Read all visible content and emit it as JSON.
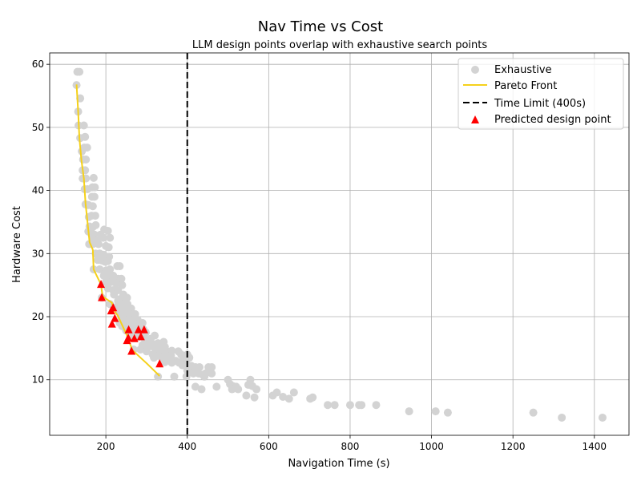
{
  "chart_data": {
    "type": "scatter",
    "title": "Nav Time vs Cost",
    "subtitle": "LLM design points overlap with exhaustive search points",
    "xlabel": "Navigation Time (s)",
    "ylabel": "Hardware Cost",
    "xlim": [
      62,
      1485
    ],
    "ylim": [
      1.2,
      61.8
    ],
    "x_ticks": [
      "200",
      "400",
      "600",
      "800",
      "1000",
      "1200",
      "1400"
    ],
    "y_ticks": [
      "10",
      "20",
      "30",
      "40",
      "50",
      "60"
    ],
    "grid": true,
    "legend_position": "top-right",
    "colors": {
      "exhaustive": "#d3d3d3",
      "pareto": "#f5d11b",
      "time_limit": "#000000",
      "predicted": "#ff0000"
    },
    "legend": [
      "Exhaustive",
      "Pareto Front",
      "Time Limit (400s)",
      "Predicted design point"
    ],
    "time_limit": 400,
    "series": [
      {
        "name": "Exhaustive",
        "kind": "scatter",
        "points": [
          [
            130,
            58.8
          ],
          [
            135,
            58.8
          ],
          [
            128,
            56.7
          ],
          [
            137,
            54.6
          ],
          [
            132,
            52.5
          ],
          [
            133,
            50.3
          ],
          [
            146,
            50.3
          ],
          [
            137,
            48.3
          ],
          [
            149,
            48.5
          ],
          [
            141,
            46.2
          ],
          [
            147,
            46.8
          ],
          [
            154,
            46.8
          ],
          [
            144,
            44.9
          ],
          [
            151,
            44.9
          ],
          [
            143,
            43.2
          ],
          [
            149,
            43.2
          ],
          [
            143,
            41.9
          ],
          [
            151,
            41.9
          ],
          [
            170,
            42
          ],
          [
            148,
            40.2
          ],
          [
            155,
            40.2
          ],
          [
            167,
            40.5
          ],
          [
            173,
            40.5
          ],
          [
            166,
            39
          ],
          [
            172,
            39
          ],
          [
            150,
            37.8
          ],
          [
            157,
            37.7
          ],
          [
            168,
            37.5
          ],
          [
            158,
            35.8
          ],
          [
            165,
            36
          ],
          [
            174,
            36
          ],
          [
            160,
            34.3
          ],
          [
            168,
            34.2
          ],
          [
            175,
            34.5
          ],
          [
            157,
            33.5
          ],
          [
            165,
            33
          ],
          [
            172,
            33
          ],
          [
            187,
            33
          ],
          [
            196,
            33.8
          ],
          [
            205,
            33.6
          ],
          [
            169,
            32.2
          ],
          [
            178,
            32
          ],
          [
            194,
            32.5
          ],
          [
            210,
            32.5
          ],
          [
            159,
            31.5
          ],
          [
            168,
            31.5
          ],
          [
            182,
            31.5
          ],
          [
            200,
            31.2
          ],
          [
            207,
            31
          ],
          [
            175,
            30
          ],
          [
            185,
            30
          ],
          [
            195,
            29.8
          ],
          [
            208,
            29.5
          ],
          [
            180,
            29
          ],
          [
            190,
            28.9
          ],
          [
            198,
            28.7
          ],
          [
            205,
            28.8
          ],
          [
            170,
            27.5
          ],
          [
            185,
            27.5
          ],
          [
            200,
            27.3
          ],
          [
            210,
            27.5
          ],
          [
            228,
            28
          ],
          [
            234,
            28
          ],
          [
            195,
            26.5
          ],
          [
            207,
            26.5
          ],
          [
            218,
            26.5
          ],
          [
            230,
            26
          ],
          [
            238,
            26
          ],
          [
            200,
            25.5
          ],
          [
            213,
            25.5
          ],
          [
            225,
            25.3
          ],
          [
            240,
            25
          ],
          [
            205,
            24.5
          ],
          [
            218,
            24.2
          ],
          [
            230,
            24.2
          ],
          [
            243,
            23.5
          ],
          [
            252,
            23
          ],
          [
            190,
            23
          ],
          [
            220,
            23.5
          ],
          [
            235,
            22.8
          ],
          [
            210,
            22
          ],
          [
            230,
            22.5
          ],
          [
            244,
            22
          ],
          [
            253,
            22
          ],
          [
            225,
            21.5
          ],
          [
            238,
            21.5
          ],
          [
            250,
            21
          ],
          [
            262,
            21.3
          ],
          [
            232,
            20.8
          ],
          [
            245,
            20.5
          ],
          [
            258,
            20.5
          ],
          [
            268,
            20.4
          ],
          [
            272,
            20.4
          ],
          [
            238,
            19.8
          ],
          [
            250,
            19.5
          ],
          [
            262,
            19.5
          ],
          [
            278,
            19.5
          ],
          [
            234,
            19
          ],
          [
            248,
            18.9
          ],
          [
            258,
            18.9
          ],
          [
            270,
            19
          ],
          [
            284,
            19
          ],
          [
            290,
            19
          ],
          [
            240,
            18.5
          ],
          [
            254,
            18.5
          ],
          [
            265,
            18.3
          ],
          [
            276,
            18.2
          ],
          [
            292,
            18
          ],
          [
            250,
            17.8
          ],
          [
            268,
            17.5
          ],
          [
            285,
            17.5
          ],
          [
            298,
            17.5
          ],
          [
            260,
            16.8
          ],
          [
            280,
            16.8
          ],
          [
            295,
            16.5
          ],
          [
            310,
            16.5
          ],
          [
            320,
            17
          ],
          [
            300,
            16
          ],
          [
            312,
            15.8
          ],
          [
            328,
            15.8
          ],
          [
            342,
            16
          ],
          [
            290,
            15.5
          ],
          [
            305,
            15.2
          ],
          [
            318,
            15.2
          ],
          [
            330,
            15.5
          ],
          [
            345,
            15.2
          ],
          [
            268,
            14.8
          ],
          [
            285,
            14.8
          ],
          [
            300,
            14.5
          ],
          [
            322,
            14.5
          ],
          [
            334,
            14.4
          ],
          [
            350,
            14.5
          ],
          [
            362,
            14.6
          ],
          [
            378,
            14.5
          ],
          [
            315,
            14
          ],
          [
            328,
            13.8
          ],
          [
            345,
            14
          ],
          [
            360,
            13.8
          ],
          [
            385,
            14
          ],
          [
            400,
            14
          ],
          [
            318,
            13.5
          ],
          [
            340,
            13.3
          ],
          [
            355,
            13.2
          ],
          [
            372,
            13
          ],
          [
            390,
            13.3
          ],
          [
            405,
            13.5
          ],
          [
            345,
            12.8
          ],
          [
            362,
            12.7
          ],
          [
            380,
            12.7
          ],
          [
            398,
            12.5
          ],
          [
            410,
            12.2
          ],
          [
            388,
            12.3
          ],
          [
            405,
            11.8
          ],
          [
            420,
            12
          ],
          [
            430,
            12
          ],
          [
            452,
            12
          ],
          [
            460,
            12
          ],
          [
            400,
            11.5
          ],
          [
            415,
            11
          ],
          [
            428,
            11
          ],
          [
            438,
            10.8
          ],
          [
            445,
            11
          ],
          [
            460,
            11
          ],
          [
            328,
            10.5
          ],
          [
            368,
            10.5
          ],
          [
            398,
            10.5
          ],
          [
            442,
            10.5
          ],
          [
            500,
            10
          ],
          [
            505,
            9.3
          ],
          [
            512,
            9
          ],
          [
            520,
            8.9
          ],
          [
            555,
            10
          ],
          [
            550,
            9.2
          ],
          [
            560,
            9
          ],
          [
            420,
            8.9
          ],
          [
            435,
            8.5
          ],
          [
            472,
            8.9
          ],
          [
            510,
            8.5
          ],
          [
            525,
            8.5
          ],
          [
            570,
            8.5
          ],
          [
            545,
            7.5
          ],
          [
            565,
            7.2
          ],
          [
            610,
            7.5
          ],
          [
            620,
            8
          ],
          [
            635,
            7.3
          ],
          [
            650,
            7
          ],
          [
            662,
            8
          ],
          [
            702,
            7
          ],
          [
            708,
            7.2
          ],
          [
            745,
            6
          ],
          [
            762,
            6
          ],
          [
            800,
            6
          ],
          [
            822,
            6
          ],
          [
            828,
            6
          ],
          [
            864,
            6
          ],
          [
            945,
            5
          ],
          [
            1010,
            5
          ],
          [
            1040,
            4.8
          ],
          [
            1250,
            4.8
          ],
          [
            1320,
            4
          ],
          [
            1420,
            4
          ]
        ]
      },
      {
        "name": "Pareto Front",
        "kind": "line",
        "points": [
          [
            128,
            56.8
          ],
          [
            132,
            52.5
          ],
          [
            135,
            48.3
          ],
          [
            140,
            44.8
          ],
          [
            146,
            41.9
          ],
          [
            150,
            38
          ],
          [
            156,
            34.3
          ],
          [
            160,
            31.8
          ],
          [
            168,
            30.6
          ],
          [
            170,
            27.5
          ],
          [
            188,
            25.1
          ],
          [
            192,
            23.2
          ],
          [
            215,
            22.2
          ],
          [
            218,
            21.2
          ],
          [
            229,
            20.2
          ],
          [
            252,
            17
          ],
          [
            265,
            14.7
          ],
          [
            302,
            12.5
          ],
          [
            332,
            10.6
          ]
        ]
      },
      {
        "name": "Predicted design point",
        "kind": "scatter",
        "points": [
          [
            188,
            25.2
          ],
          [
            190,
            23.1
          ],
          [
            213,
            21
          ],
          [
            218,
            21.5
          ],
          [
            215,
            18.9
          ],
          [
            222,
            19.8
          ],
          [
            252,
            16.3
          ],
          [
            255,
            16.7
          ],
          [
            256,
            18
          ],
          [
            270,
            16.6
          ],
          [
            280,
            18
          ],
          [
            286,
            16.9
          ],
          [
            294,
            18
          ],
          [
            263,
            14.6
          ],
          [
            332,
            12.6
          ]
        ]
      }
    ]
  }
}
